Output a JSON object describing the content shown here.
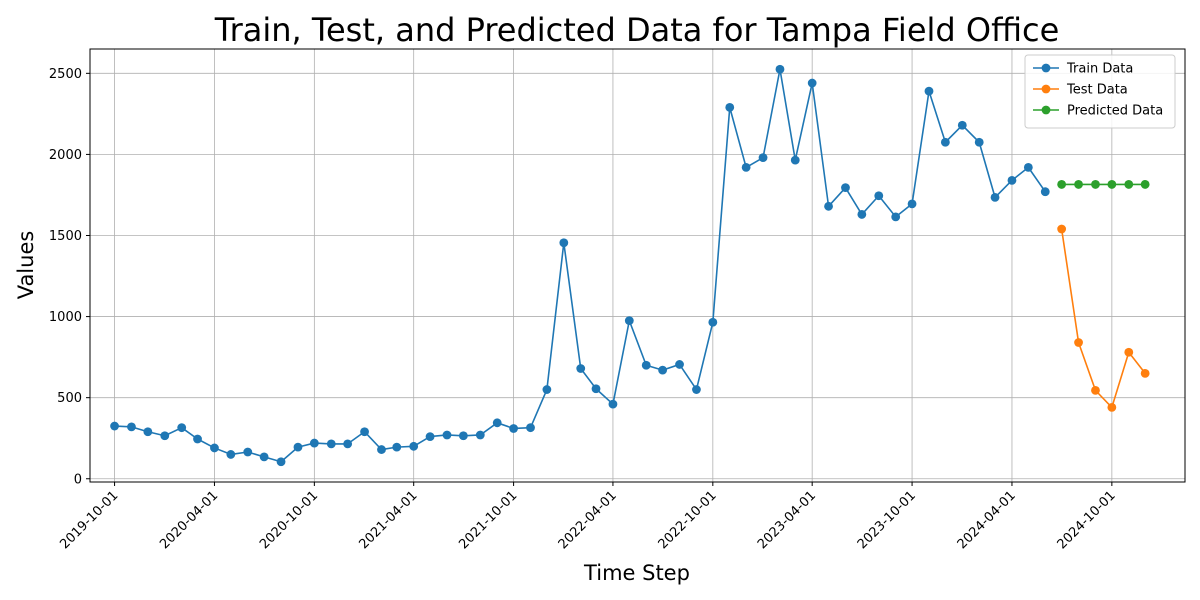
{
  "chart_data": {
    "type": "line",
    "title": "Train, Test, and Predicted Data for Tampa Field Office",
    "xlabel": "Time Step",
    "ylabel": "Values",
    "x_tick_labels": [
      "2019-10-01",
      "2020-04-01",
      "2020-10-01",
      "2021-04-01",
      "2021-10-01",
      "2022-04-01",
      "2022-10-01",
      "2023-04-01",
      "2023-10-01",
      "2024-04-01",
      "2024-10-01"
    ],
    "y_ticks": [
      0,
      500,
      1000,
      1500,
      2000,
      2500
    ],
    "ylim": [
      -20,
      2650
    ],
    "xlim": [
      "2019-08-17",
      "2025-02-12"
    ],
    "grid": true,
    "legend_position": "top-right",
    "series": [
      {
        "name": "Train Data",
        "color": "#1f77b4",
        "x": [
          "2019-10-01",
          "2019-11-01",
          "2019-12-01",
          "2020-01-01",
          "2020-02-01",
          "2020-03-01",
          "2020-04-01",
          "2020-05-01",
          "2020-06-01",
          "2020-07-01",
          "2020-08-01",
          "2020-09-01",
          "2020-10-01",
          "2020-11-01",
          "2020-12-01",
          "2021-01-01",
          "2021-02-01",
          "2021-03-01",
          "2021-04-01",
          "2021-05-01",
          "2021-06-01",
          "2021-07-01",
          "2021-08-01",
          "2021-09-01",
          "2021-10-01",
          "2021-11-01",
          "2021-12-01",
          "2022-01-01",
          "2022-02-01",
          "2022-03-01",
          "2022-04-01",
          "2022-05-01",
          "2022-06-01",
          "2022-07-01",
          "2022-08-01",
          "2022-09-01",
          "2022-10-01",
          "2022-11-01",
          "2022-12-01",
          "2023-01-01",
          "2023-02-01",
          "2023-03-01",
          "2023-04-01",
          "2023-05-01",
          "2023-06-01",
          "2023-07-01",
          "2023-08-01",
          "2023-09-01",
          "2023-10-01",
          "2023-11-01",
          "2023-12-01",
          "2024-01-01",
          "2024-02-01",
          "2024-03-01",
          "2024-04-01",
          "2024-05-01",
          "2024-06-01"
        ],
        "values": [
          325,
          320,
          290,
          265,
          315,
          245,
          190,
          150,
          165,
          135,
          105,
          195,
          220,
          215,
          215,
          290,
          180,
          195,
          200,
          260,
          270,
          265,
          270,
          345,
          310,
          315,
          550,
          1455,
          680,
          555,
          460,
          975,
          700,
          670,
          705,
          550,
          965,
          2290,
          1920,
          1980,
          2525,
          1965,
          2440,
          1680,
          1795,
          1630,
          1745,
          1615,
          1695,
          2390,
          2075,
          2180,
          2075,
          1735,
          1840,
          1920,
          1770
        ]
      },
      {
        "name": "Test Data",
        "color": "#ff7f0e",
        "x": [
          "2024-07-01",
          "2024-08-01",
          "2024-09-01",
          "2024-10-01",
          "2024-11-01",
          "2024-12-01"
        ],
        "values": [
          1540,
          840,
          545,
          440,
          780,
          650
        ]
      },
      {
        "name": "Predicted Data",
        "color": "#2ca02c",
        "x": [
          "2024-07-01",
          "2024-08-01",
          "2024-09-01",
          "2024-10-01",
          "2024-11-01",
          "2024-12-01"
        ],
        "values": [
          1815,
          1815,
          1815,
          1815,
          1815,
          1815
        ]
      }
    ]
  }
}
